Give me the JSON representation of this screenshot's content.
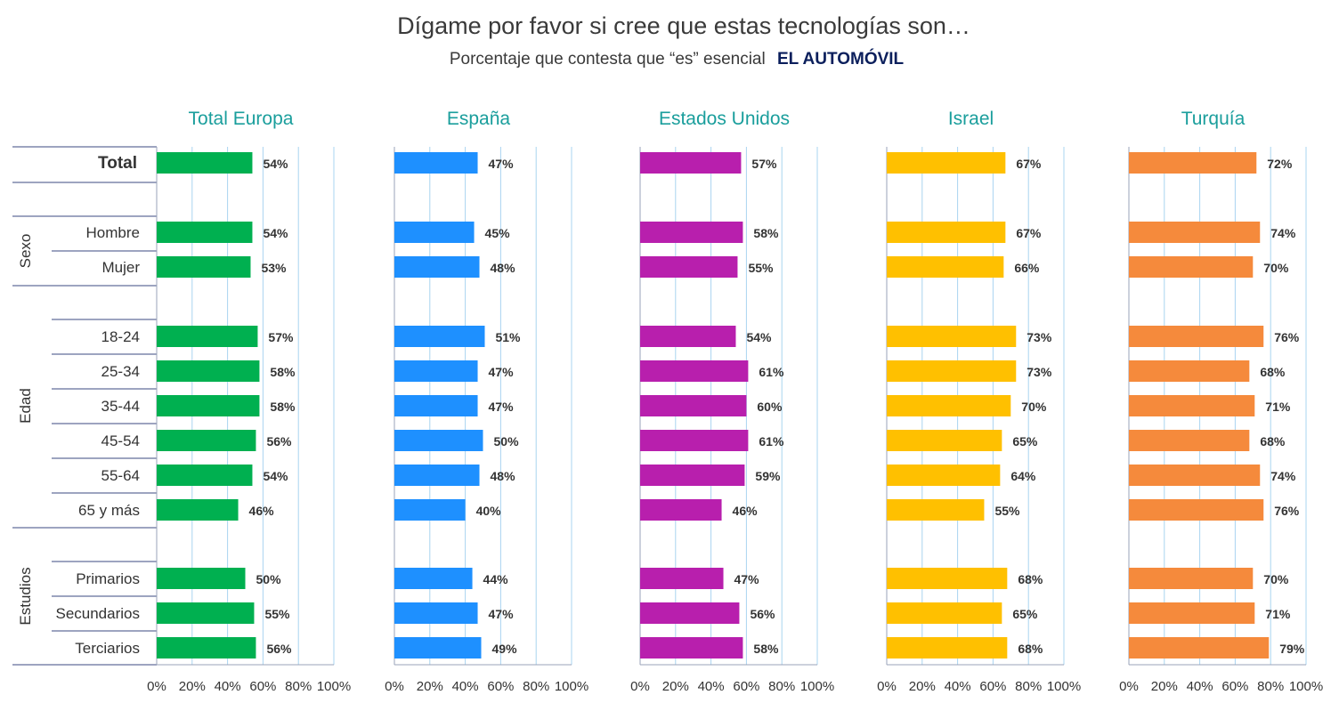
{
  "title": "Dígame por favor si cree que estas tecnologías son…",
  "subtitle": {
    "prefix": "Porcentaje que contesta que “es” esencial",
    "strong": "EL AUTOMÓVIL"
  },
  "chart_data": {
    "type": "bar",
    "orientation": "horizontal",
    "xlim": [
      0,
      100
    ],
    "x_ticks": [
      "0%",
      "20%",
      "40%",
      "60%",
      "80%",
      "100%"
    ],
    "grid": true,
    "rows": [
      {
        "key": "total",
        "label": "Total",
        "group": null
      },
      {
        "key": "hombre",
        "label": "Hombre",
        "group": "Sexo"
      },
      {
        "key": "mujer",
        "label": "Mujer",
        "group": "Sexo"
      },
      {
        "key": "18-24",
        "label": "18-24",
        "group": "Edad"
      },
      {
        "key": "25-34",
        "label": "25-34",
        "group": "Edad"
      },
      {
        "key": "35-44",
        "label": "35-44",
        "group": "Edad"
      },
      {
        "key": "45-54",
        "label": "45-54",
        "group": "Edad"
      },
      {
        "key": "55-64",
        "label": "55-64",
        "group": "Edad"
      },
      {
        "key": "65",
        "label": "65 y más",
        "group": "Edad"
      },
      {
        "key": "primarios",
        "label": "Primarios",
        "group": "Estudios"
      },
      {
        "key": "secundarios",
        "label": "Secundarios",
        "group": "Estudios"
      },
      {
        "key": "terciarios",
        "label": "Terciarios",
        "group": "Estudios"
      }
    ],
    "groups": [
      "Sexo",
      "Edad",
      "Estudios"
    ],
    "series": [
      {
        "name": "Total Europa",
        "color": "#00b050",
        "values": [
          54,
          54,
          53,
          57,
          58,
          58,
          56,
          54,
          46,
          50,
          55,
          56
        ]
      },
      {
        "name": "España",
        "color": "#1e90ff",
        "values": [
          47,
          45,
          48,
          51,
          47,
          47,
          50,
          48,
          40,
          44,
          47,
          49
        ]
      },
      {
        "name": "Estados Unidos",
        "color": "#b81fad",
        "values": [
          57,
          58,
          55,
          54,
          61,
          60,
          61,
          59,
          46,
          47,
          56,
          58
        ]
      },
      {
        "name": "Israel",
        "color": "#ffc000",
        "values": [
          67,
          67,
          66,
          73,
          73,
          70,
          65,
          64,
          55,
          68,
          65,
          68
        ]
      },
      {
        "name": "Turquía",
        "color": "#f58a3c",
        "values": [
          72,
          74,
          70,
          76,
          68,
          71,
          68,
          74,
          76,
          70,
          71,
          79
        ]
      }
    ]
  }
}
